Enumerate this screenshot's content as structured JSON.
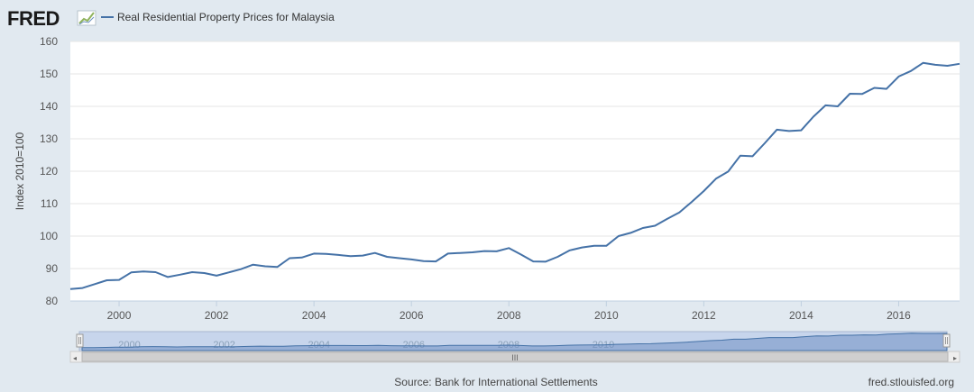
{
  "logo": {
    "text": "FRED",
    "icon": "trend-line-icon"
  },
  "legend": {
    "label": "Real Residential Property Prices for Malaysia",
    "color": "#4572a7"
  },
  "footer": {
    "source": "Source: Bank for International Settlements",
    "site": "fred.stlouisfed.org"
  },
  "navigator": {
    "handle_grip": "III"
  },
  "chart_data": {
    "type": "line",
    "title": "Real Residential Property Prices for Malaysia",
    "ylabel": "Index 2010=100",
    "xlabel": "",
    "xlim": [
      1999.0,
      2017.25
    ],
    "ylim": [
      80,
      160
    ],
    "yticks": [
      80,
      90,
      100,
      110,
      120,
      130,
      140,
      150,
      160
    ],
    "xticks": [
      2000,
      2002,
      2004,
      2006,
      2008,
      2010,
      2012,
      2014,
      2016
    ],
    "nav_xticks": [
      2000,
      2002,
      2004,
      2006,
      2008,
      2010
    ],
    "grid": true,
    "series": [
      {
        "name": "Real Residential Property Prices for Malaysia",
        "color": "#4572a7",
        "x": [
          1999.0,
          1999.25,
          1999.5,
          1999.75,
          2000.0,
          2000.25,
          2000.5,
          2000.75,
          2001.0,
          2001.25,
          2001.5,
          2001.75,
          2002.0,
          2002.25,
          2002.5,
          2002.75,
          2003.0,
          2003.25,
          2003.5,
          2003.75,
          2004.0,
          2004.25,
          2004.5,
          2004.75,
          2005.0,
          2005.25,
          2005.5,
          2005.75,
          2006.0,
          2006.25,
          2006.5,
          2006.75,
          2007.0,
          2007.25,
          2007.5,
          2007.75,
          2008.0,
          2008.25,
          2008.5,
          2008.75,
          2009.0,
          2009.25,
          2009.5,
          2009.75,
          2010.0,
          2010.25,
          2010.5,
          2010.75,
          2011.0,
          2011.25,
          2011.5,
          2011.75,
          2012.0,
          2012.25,
          2012.5,
          2012.75,
          2013.0,
          2013.25,
          2013.5,
          2013.75,
          2014.0,
          2014.25,
          2014.5,
          2014.75,
          2015.0,
          2015.25,
          2015.5,
          2015.75,
          2016.0,
          2016.25,
          2016.5,
          2016.75,
          2017.0,
          2017.25
        ],
        "y": [
          83.7,
          84.0,
          85.2,
          86.4,
          86.5,
          88.8,
          89.1,
          88.9,
          87.4,
          88.1,
          88.9,
          88.6,
          87.8,
          88.8,
          89.8,
          91.2,
          90.7,
          90.5,
          93.2,
          93.4,
          94.6,
          94.5,
          94.2,
          93.8,
          94.0,
          94.8,
          93.6,
          93.2,
          92.8,
          92.3,
          92.2,
          94.6,
          94.8,
          95.0,
          95.4,
          95.3,
          96.3,
          94.3,
          92.2,
          92.1,
          93.6,
          95.6,
          96.5,
          97.0,
          97.0,
          100.0,
          101.0,
          102.5,
          103.2,
          105.3,
          107.3,
          110.5,
          113.9,
          117.7,
          119.9,
          124.8,
          124.6,
          128.6,
          132.8,
          132.4,
          132.6,
          136.8,
          140.3,
          140.0,
          143.9,
          143.8,
          145.7,
          145.4,
          149.2,
          150.9,
          153.4,
          152.8,
          152.5,
          153.1
        ]
      }
    ]
  }
}
